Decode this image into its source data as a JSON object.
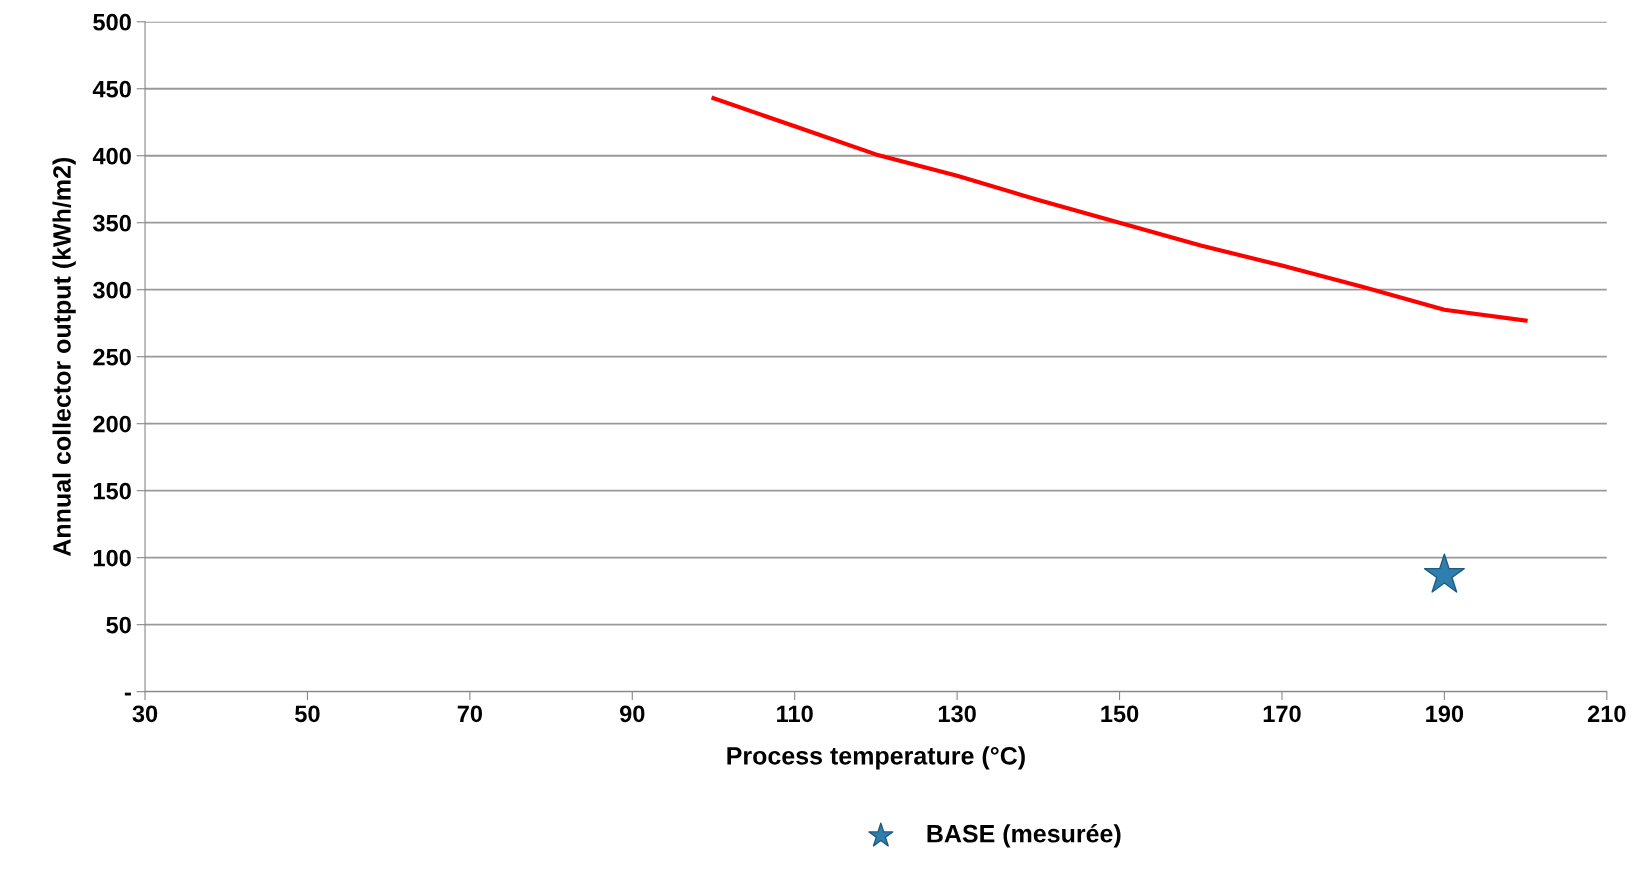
{
  "chart_data": {
    "type": "line",
    "xlabel": "Process temperature (°C)",
    "ylabel": "Annual collector output (kWh/m2)",
    "xlim": [
      30,
      210
    ],
    "xticks": [
      30,
      50,
      70,
      90,
      110,
      130,
      150,
      170,
      190,
      210
    ],
    "ylim": [
      0,
      500
    ],
    "yticks": [
      {
        "value": 0,
        "label": "-"
      },
      50,
      100,
      150,
      200,
      250,
      300,
      350,
      400,
      450,
      500
    ],
    "grid": "y",
    "legend": "bottom",
    "series": [
      {
        "color": "#ff0000",
        "marker": "none",
        "line_style": "solid",
        "x": [
          100,
          110,
          120,
          130,
          140,
          150,
          160,
          170,
          180,
          190,
          200
        ],
        "values": [
          443,
          422,
          401,
          385,
          367,
          350,
          333,
          318,
          302,
          285,
          277
        ]
      },
      {
        "type": "scatter",
        "name": "BASE (mesurée)",
        "color": "#2f7fae",
        "marker": "star",
        "x": [
          190
        ],
        "values": [
          87
        ]
      }
    ]
  }
}
